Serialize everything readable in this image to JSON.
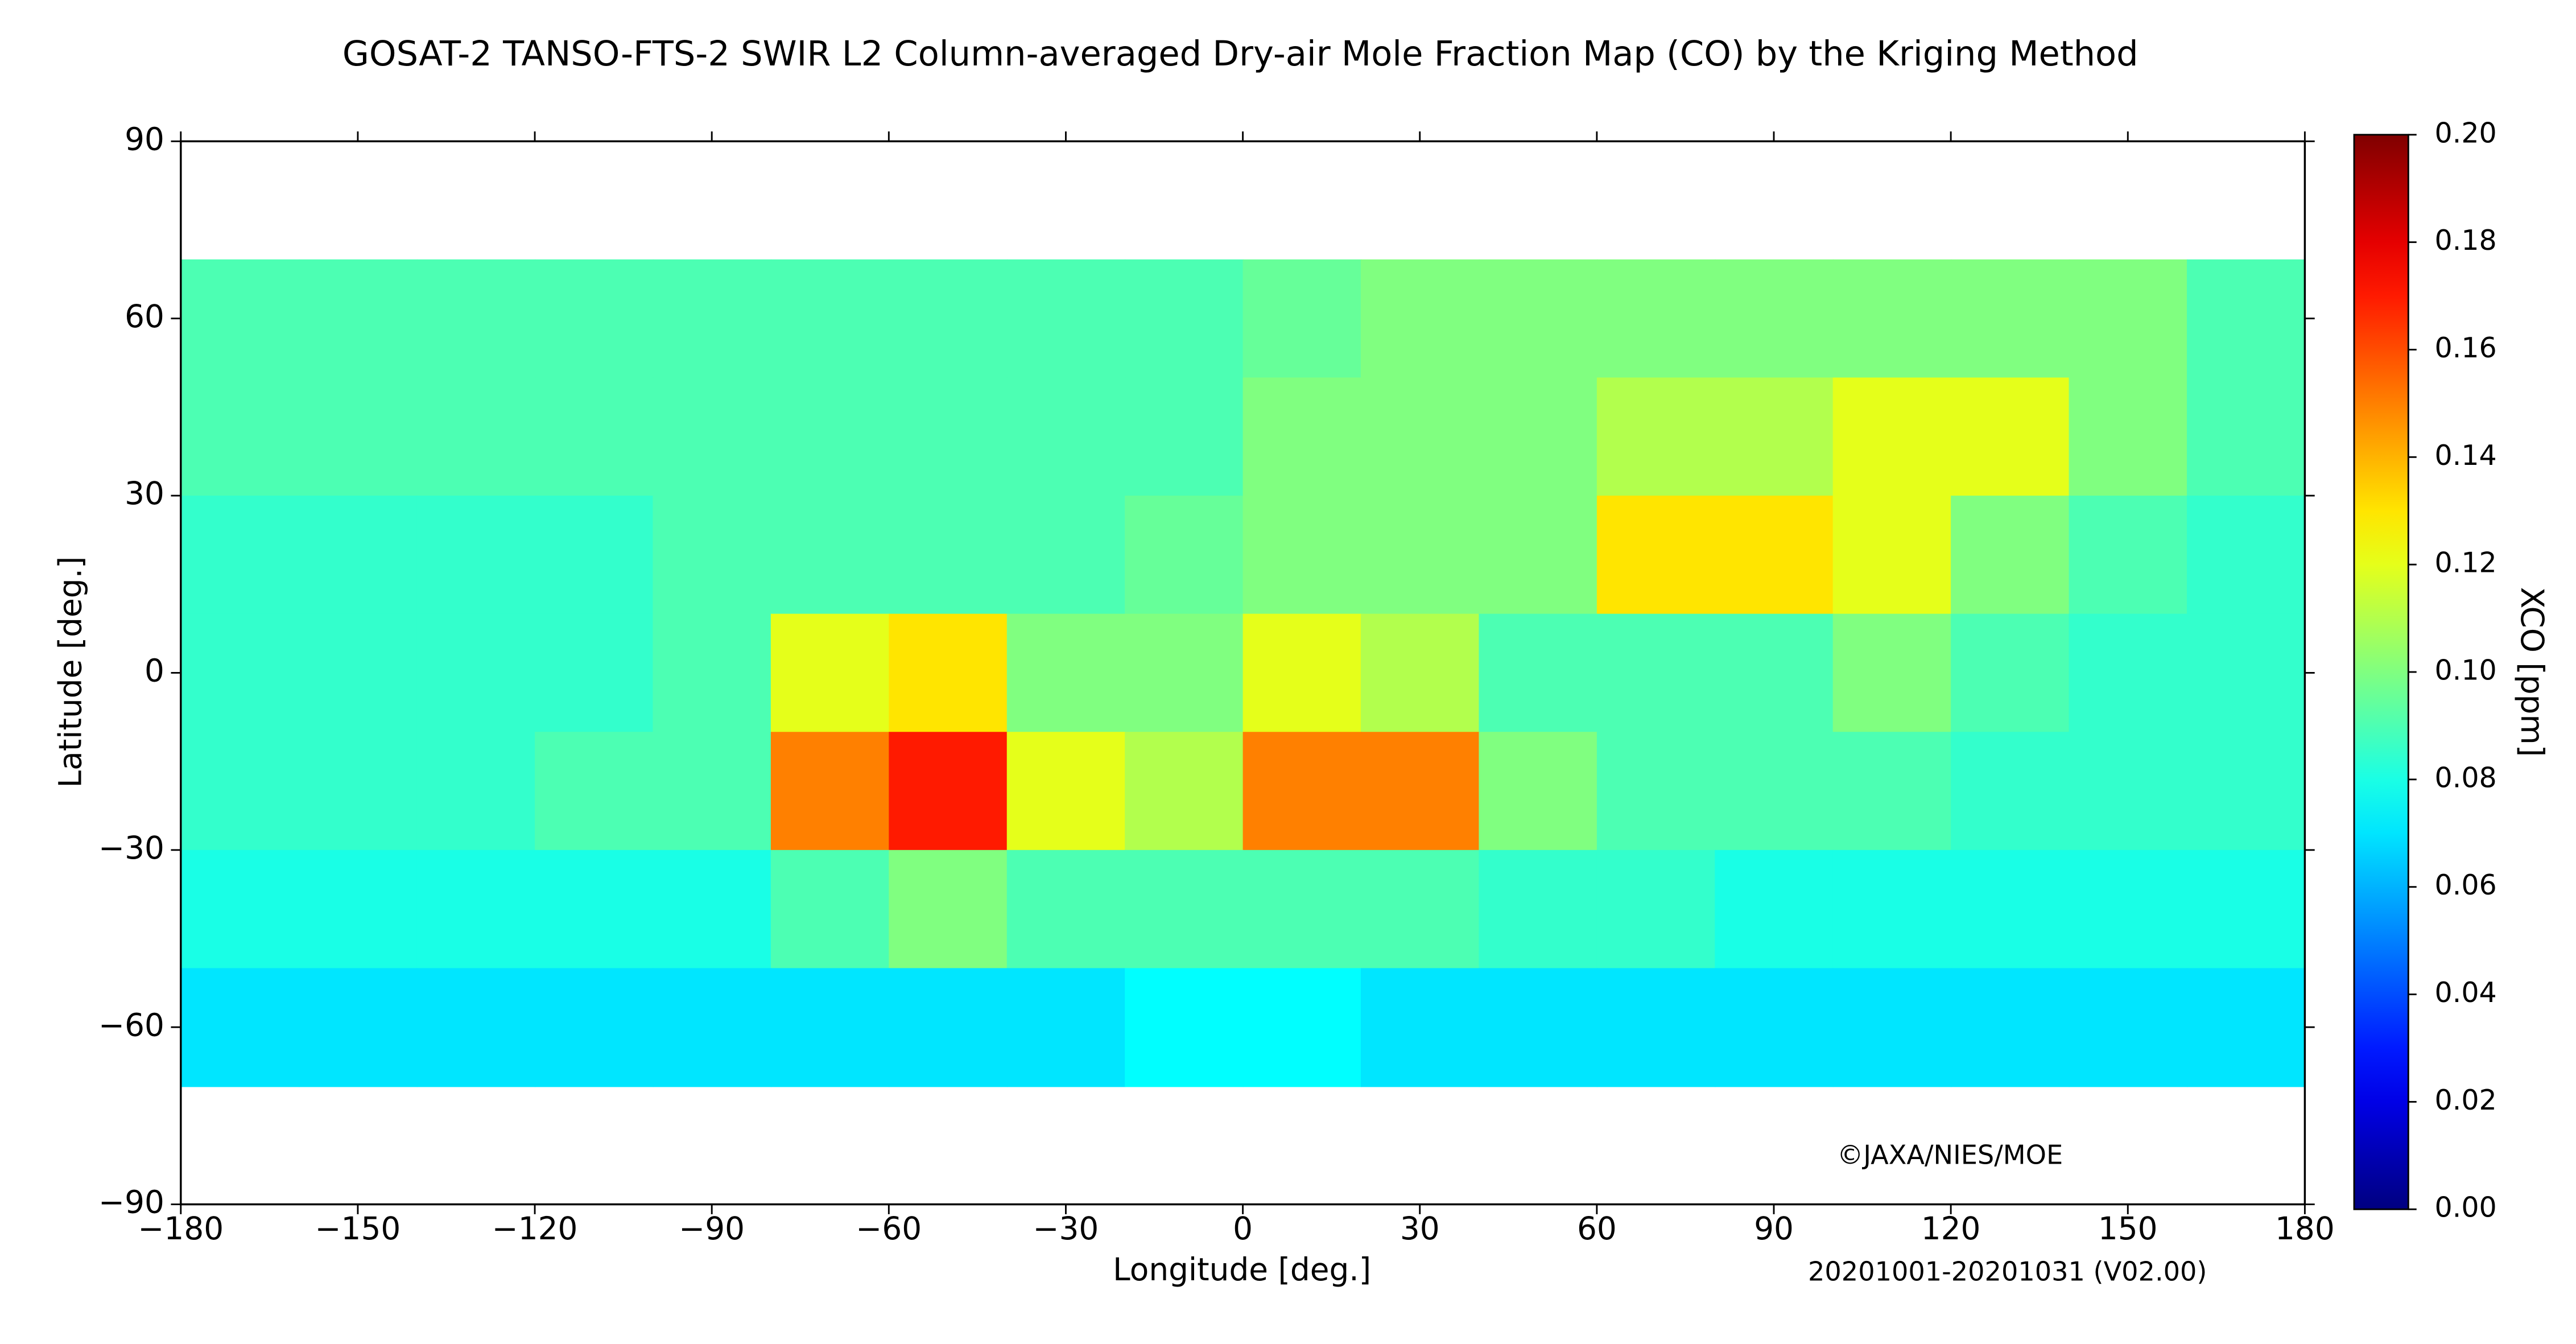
{
  "chart_data": {
    "type": "heatmap",
    "title": "GOSAT-2 TANSO-FTS-2 SWIR L2 Column-averaged Dry-air Mole Fraction Map (CO) by the Kriging Method",
    "xlabel": "Longitude [deg.]",
    "ylabel": "Latitude [deg.]",
    "colorbar_label": "XCO [ppm]",
    "annotations": [
      "©JAXA/NIES/MOE",
      "20201001-20201031 (V02.00)"
    ],
    "colormap": "jet",
    "x": [
      -170,
      -150,
      -130,
      -110,
      -90,
      -70,
      -50,
      -30,
      -10,
      10,
      30,
      50,
      70,
      90,
      110,
      130,
      150,
      170
    ],
    "y": [
      80,
      60,
      40,
      20,
      0,
      -20,
      -40,
      -60,
      -80
    ],
    "values": [
      [
        null,
        null,
        null,
        null,
        null,
        null,
        null,
        null,
        null,
        null,
        null,
        null,
        null,
        null,
        null,
        null,
        null,
        null
      ],
      [
        0.09,
        0.09,
        0.09,
        0.09,
        0.09,
        0.09,
        0.09,
        0.09,
        0.09,
        0.095,
        0.1,
        0.1,
        0.1,
        0.1,
        0.1,
        0.1,
        0.1,
        0.09
      ],
      [
        0.09,
        0.09,
        0.09,
        0.09,
        0.09,
        0.09,
        0.09,
        0.09,
        0.09,
        0.1,
        0.1,
        0.1,
        0.11,
        0.11,
        0.12,
        0.12,
        0.1,
        0.09
      ],
      [
        0.085,
        0.085,
        0.085,
        0.085,
        0.09,
        0.09,
        0.09,
        0.09,
        0.095,
        0.1,
        0.1,
        0.1,
        0.13,
        0.13,
        0.12,
        0.1,
        0.09,
        0.085
      ],
      [
        0.085,
        0.085,
        0.085,
        0.085,
        0.09,
        0.12,
        0.13,
        0.1,
        0.1,
        0.12,
        0.11,
        0.09,
        0.09,
        0.09,
        0.1,
        0.09,
        0.085,
        0.085
      ],
      [
        0.085,
        0.085,
        0.085,
        0.09,
        0.09,
        0.15,
        0.17,
        0.12,
        0.11,
        0.15,
        0.15,
        0.1,
        0.09,
        0.09,
        0.09,
        0.085,
        0.085,
        0.085
      ],
      [
        0.08,
        0.08,
        0.08,
        0.08,
        0.08,
        0.09,
        0.1,
        0.09,
        0.09,
        0.09,
        0.09,
        0.085,
        0.085,
        0.08,
        0.08,
        0.08,
        0.08,
        0.08
      ],
      [
        0.07,
        0.07,
        0.07,
        0.07,
        0.07,
        0.07,
        0.07,
        0.07,
        0.075,
        0.075,
        0.07,
        0.07,
        0.07,
        0.07,
        0.07,
        0.07,
        0.07,
        0.07
      ],
      [
        null,
        null,
        null,
        null,
        null,
        null,
        null,
        null,
        null,
        null,
        null,
        null,
        null,
        null,
        null,
        null,
        null,
        null
      ]
    ],
    "xlim": [
      -180,
      180
    ],
    "ylim": [
      -90,
      90
    ],
    "xticks": [
      {
        "value": -180,
        "label": "−180"
      },
      {
        "value": -150,
        "label": "−150"
      },
      {
        "value": -120,
        "label": "−120"
      },
      {
        "value": -90,
        "label": "−90"
      },
      {
        "value": -60,
        "label": "−60"
      },
      {
        "value": -30,
        "label": "−30"
      },
      0,
      30,
      60,
      90,
      120,
      150,
      180
    ],
    "yticks": [
      {
        "value": -90,
        "label": "−90"
      },
      {
        "value": -60,
        "label": "−60"
      },
      {
        "value": -30,
        "label": "−30"
      },
      0,
      30,
      60,
      90
    ],
    "clim": [
      0,
      0.2
    ],
    "cticks": [
      {
        "value": 0,
        "label": "0.00"
      },
      {
        "value": 0.02,
        "label": "0.02"
      },
      {
        "value": 0.04,
        "label": "0.04"
      },
      {
        "value": 0.06,
        "label": "0.06"
      },
      {
        "value": 0.08,
        "label": "0.08"
      },
      {
        "value": 0.1,
        "label": "0.10"
      },
      {
        "value": 0.12,
        "label": "0.12"
      },
      {
        "value": 0.14,
        "label": "0.14"
      },
      {
        "value": 0.16,
        "label": "0.16"
      },
      {
        "value": 0.18,
        "label": "0.18"
      },
      {
        "value": 0.2,
        "label": "0.20"
      }
    ]
  }
}
